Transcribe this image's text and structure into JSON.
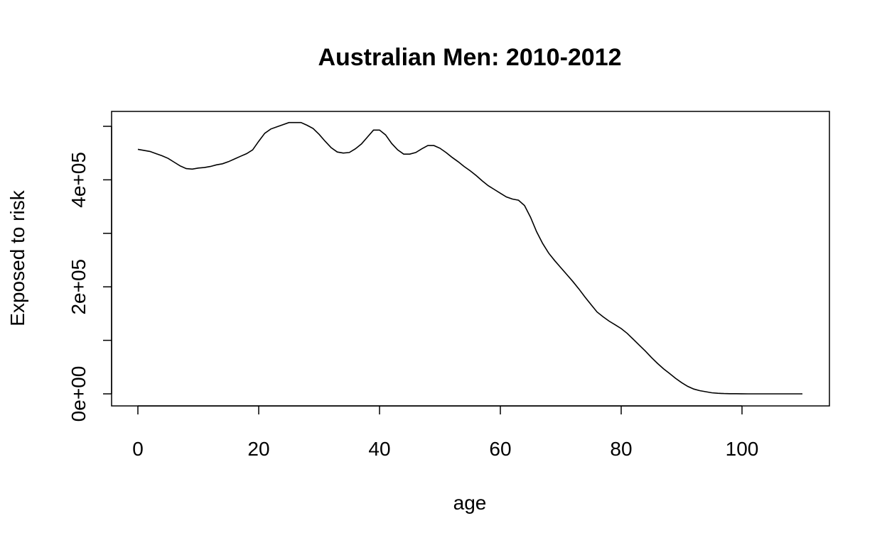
{
  "chart_data": {
    "type": "line",
    "title": "Australian Men: 2010-2012",
    "xlabel": "age",
    "ylabel": "Exposed to risk",
    "xlim": [
      0,
      110
    ],
    "ylim": [
      0,
      500000
    ],
    "xticks": [
      0,
      20,
      40,
      60,
      80,
      100
    ],
    "xtick_labels": [
      "0",
      "20",
      "40",
      "60",
      "80",
      "100"
    ],
    "yticks": [
      0,
      100000,
      200000,
      300000,
      400000,
      500000
    ],
    "ytick_labels": [
      "0e+00",
      "",
      "2e+05",
      "",
      "4e+05",
      ""
    ],
    "grid": false,
    "legend": "none",
    "series": [
      {
        "color": "#000000",
        "x": [
          0,
          1,
          2,
          3,
          4,
          5,
          6,
          7,
          8,
          9,
          10,
          11,
          12,
          13,
          14,
          15,
          16,
          17,
          18,
          19,
          20,
          21,
          22,
          23,
          24,
          25,
          26,
          27,
          28,
          29,
          30,
          31,
          32,
          33,
          34,
          35,
          36,
          37,
          38,
          39,
          40,
          41,
          42,
          43,
          44,
          45,
          46,
          47,
          48,
          49,
          50,
          51,
          52,
          53,
          54,
          55,
          56,
          57,
          58,
          59,
          60,
          61,
          62,
          63,
          64,
          65,
          66,
          67,
          68,
          69,
          70,
          71,
          72,
          73,
          74,
          75,
          76,
          77,
          78,
          79,
          80,
          81,
          82,
          83,
          84,
          85,
          86,
          87,
          88,
          89,
          90,
          91,
          92,
          93,
          94,
          95,
          96,
          97,
          98,
          99,
          100,
          101,
          102,
          103,
          104,
          105,
          106,
          107,
          108,
          109,
          110
        ],
        "y": [
          457000,
          455000,
          453000,
          449000,
          445000,
          440000,
          433000,
          426000,
          421000,
          420000,
          422000,
          423000,
          425000,
          428000,
          430000,
          434000,
          439000,
          444000,
          449000,
          456000,
          472000,
          487000,
          495000,
          499000,
          503000,
          507000,
          507000,
          507000,
          502000,
          496000,
          485000,
          472000,
          460000,
          452000,
          450000,
          451000,
          458000,
          467000,
          480000,
          493000,
          493000,
          484000,
          468000,
          456000,
          448000,
          448000,
          451000,
          458000,
          464000,
          464000,
          459000,
          451000,
          442000,
          434000,
          425000,
          417000,
          408000,
          398000,
          389000,
          382000,
          375000,
          368000,
          364000,
          362000,
          352000,
          330000,
          303000,
          281000,
          263000,
          249000,
          236000,
          223000,
          210000,
          196000,
          181000,
          167000,
          153000,
          144000,
          136000,
          129000,
          122000,
          113000,
          102000,
          91000,
          80000,
          68000,
          57000,
          47000,
          38000,
          29000,
          21000,
          14000,
          9000,
          6000,
          4000,
          2000,
          1000,
          500,
          300,
          200,
          100,
          50,
          30,
          20,
          10,
          5,
          2,
          1,
          0,
          0,
          0
        ]
      }
    ]
  }
}
